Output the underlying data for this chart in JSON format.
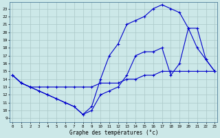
{
  "xlabel": "Graphe des températures (°c)",
  "background_color": "#cce8e8",
  "grid_color": "#aac8c8",
  "line_color": "#0000cc",
  "x_ticks": [
    0,
    1,
    2,
    3,
    4,
    5,
    6,
    7,
    8,
    9,
    10,
    11,
    12,
    13,
    14,
    15,
    16,
    17,
    18,
    19,
    20,
    21,
    22,
    23
  ],
  "y_ticks": [
    9,
    10,
    11,
    12,
    13,
    14,
    15,
    16,
    17,
    18,
    19,
    20,
    21,
    22,
    23
  ],
  "ylim": [
    8.5,
    23.8
  ],
  "xlim": [
    -0.3,
    23.3
  ],
  "curve1_x": [
    0,
    1,
    2,
    3,
    4,
    5,
    6,
    7,
    8,
    9,
    10,
    11,
    12,
    13,
    14,
    15,
    16,
    17,
    18,
    19,
    20,
    21,
    22,
    23
  ],
  "curve1_y": [
    14.5,
    13.5,
    13.0,
    13.0,
    13.0,
    13.0,
    13.0,
    13.0,
    13.0,
    13.0,
    13.5,
    13.5,
    13.5,
    14.0,
    14.0,
    14.5,
    14.5,
    15.0,
    15.0,
    15.0,
    15.0,
    15.0,
    15.0,
    15.0
  ],
  "curve2_x": [
    0,
    1,
    2,
    3,
    4,
    5,
    6,
    7,
    8,
    9,
    10,
    11,
    12,
    13,
    14,
    15,
    16,
    17,
    18,
    19,
    20,
    21,
    22,
    23
  ],
  "curve2_y": [
    14.5,
    13.5,
    13.0,
    12.5,
    12.0,
    11.5,
    11.0,
    10.5,
    9.5,
    10.0,
    12.0,
    12.5,
    13.0,
    14.5,
    17.0,
    17.5,
    17.5,
    18.0,
    14.5,
    16.0,
    20.5,
    18.0,
    16.5,
    15.0
  ],
  "curve3_x": [
    0,
    1,
    2,
    3,
    4,
    5,
    6,
    7,
    8,
    9,
    10,
    11,
    12,
    13,
    14,
    15,
    16,
    17,
    18,
    19,
    20,
    21,
    22,
    23
  ],
  "curve3_y": [
    14.5,
    13.5,
    13.0,
    12.5,
    12.0,
    11.5,
    11.0,
    10.5,
    9.5,
    10.5,
    14.0,
    17.0,
    18.5,
    21.0,
    21.5,
    22.0,
    23.0,
    23.5,
    23.0,
    22.5,
    20.5,
    20.5,
    16.5,
    15.0
  ]
}
